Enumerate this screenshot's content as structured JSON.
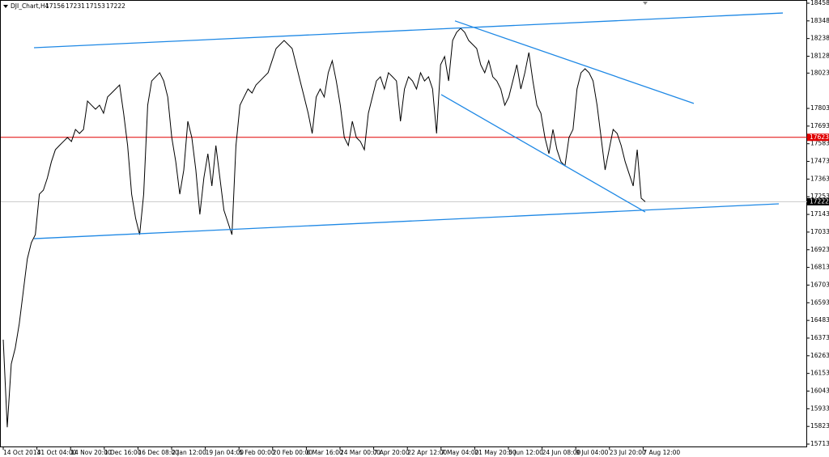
{
  "chart_data": {
    "type": "line",
    "title": "DJI_Chart,H4",
    "ohlc": [
      17156,
      17231,
      17153,
      17222
    ],
    "color": "#000000",
    "values": [
      16363,
      15818,
      16212,
      16312,
      16463,
      16665,
      16866,
      16967,
      17017,
      17269,
      17294,
      17370,
      17471,
      17546,
      17572,
      17597,
      17622,
      17597,
      17672,
      17647,
      17672,
      17849,
      17823,
      17798,
      17823,
      17773,
      17874,
      17899,
      17924,
      17949,
      17773,
      17572,
      17269,
      17118,
      17017,
      17269,
      17823,
      17974,
      18000,
      18025,
      17974,
      17874,
      17622,
      17471,
      17269,
      17420,
      17723,
      17622,
      17420,
      17143,
      17370,
      17521,
      17320,
      17572,
      17370,
      17169,
      17093,
      17017,
      17572,
      17823,
      17874,
      17924,
      17899,
      17949,
      17974,
      18000,
      18025,
      18100,
      18176,
      18201,
      18226,
      18201,
      18176,
      18075,
      17974,
      17874,
      17773,
      17647,
      17874,
      17924,
      17874,
      18025,
      18100,
      17974,
      17823,
      17622,
      17572,
      17723,
      17622,
      17597,
      17546,
      17773,
      17874,
      17974,
      18000,
      17924,
      18025,
      18000,
      17974,
      17723,
      17924,
      18000,
      17974,
      17924,
      18025,
      17974,
      18000,
      17924,
      17647,
      18075,
      18126,
      17974,
      18226,
      18277,
      18302,
      18277,
      18226,
      18201,
      18176,
      18075,
      18025,
      18100,
      18000,
      17974,
      17924,
      17823,
      17874,
      17974,
      18075,
      17924,
      18025,
      18151,
      17974,
      17823,
      17773,
      17622,
      17521,
      17672,
      17546,
      17471,
      17446,
      17622,
      17672,
      17924,
      18025,
      18050,
      18025,
      17974,
      17823,
      17622,
      17420,
      17546,
      17672,
      17647,
      17572,
      17471,
      17395,
      17320,
      17546,
      17244,
      17222
    ],
    "ylim": [
      15693,
      18478
    ],
    "yticks": [
      18458,
      18348,
      18238,
      18128,
      18023,
      17803,
      17693,
      17583,
      17473,
      17363,
      17253,
      17143,
      17033,
      16923,
      16813,
      16703,
      16593,
      16483,
      16373,
      16263,
      16153,
      16043,
      15933,
      15823,
      15713
    ],
    "xtick_labels": [
      "14 Oct 2014",
      "31 Oct 04:00",
      "14 Nov 20:00",
      "1 Dec 16:00",
      "16 Dec 08:00",
      "2 Jan 12:00",
      "19 Jan 04:00",
      "5 Feb 00:00",
      "20 Feb 00:00",
      "6 Mar 16:00",
      "24 Mar 00:00",
      "7 Apr 20:00",
      "22 Apr 12:00",
      "7 May 04:00",
      "21 May 20:00",
      "5 Jun 12:00",
      "24 Jun 08:00",
      "9 Jul 04:00",
      "23 Jul 20:00",
      "7 Aug 12:00"
    ],
    "hlines": [
      {
        "value": 17623,
        "color": "#e00000",
        "label_fill": "#e00000"
      },
      {
        "value": 17222,
        "color": "#c8c8c8",
        "label_fill": "#000000"
      }
    ],
    "trendlines": [
      {
        "values": [
          18181,
          18397
        ],
        "color": "#1e88e5"
      },
      {
        "values": [
          16992,
          17209
        ],
        "color": "#1e88e5"
      },
      {
        "values": [
          18348,
          17834
        ],
        "color": "#1e88e5"
      },
      {
        "values": [
          17889,
          17158
        ],
        "color": "#1e88e5"
      }
    ]
  }
}
